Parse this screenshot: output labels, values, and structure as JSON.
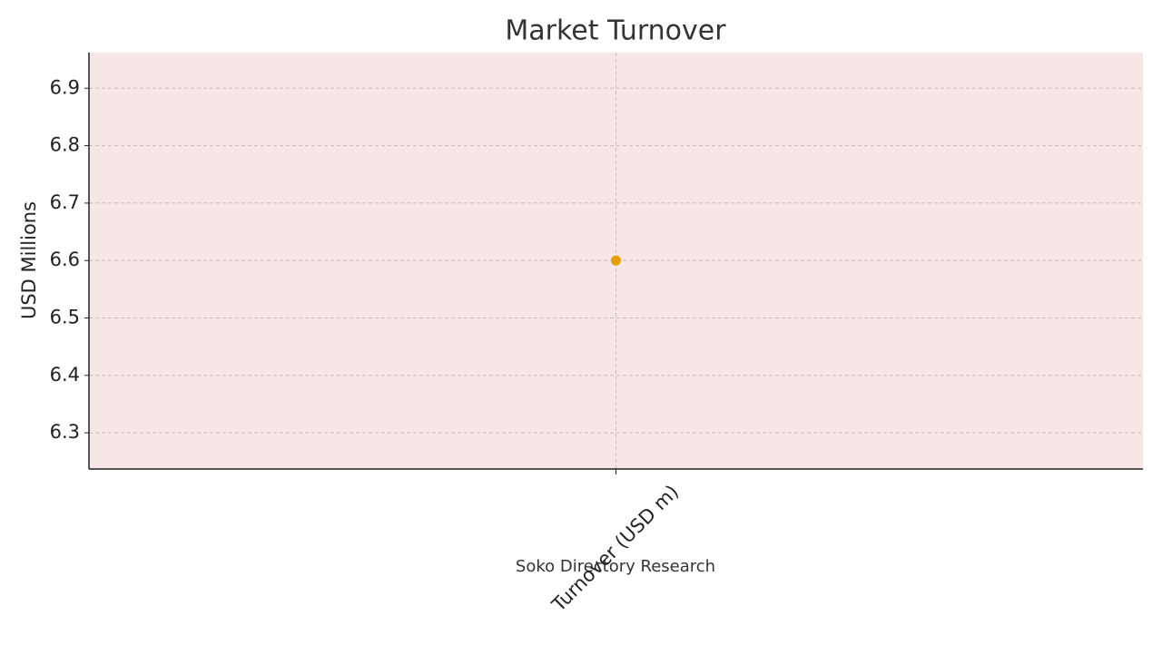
{
  "chart_data": {
    "type": "line",
    "title": "Market Turnover",
    "y_label": "USD Millions",
    "x_label": "Soko Directory Research",
    "categories": [
      "Turnover (USD m)"
    ],
    "values": [
      6.6
    ],
    "color": "#e69f00",
    "ylim": [
      6.237,
      6.962
    ],
    "yticks": [
      6.3,
      6.4,
      6.5,
      6.6,
      6.7,
      6.8,
      6.9
    ],
    "grid": true,
    "background": "#f6e6e6"
  }
}
